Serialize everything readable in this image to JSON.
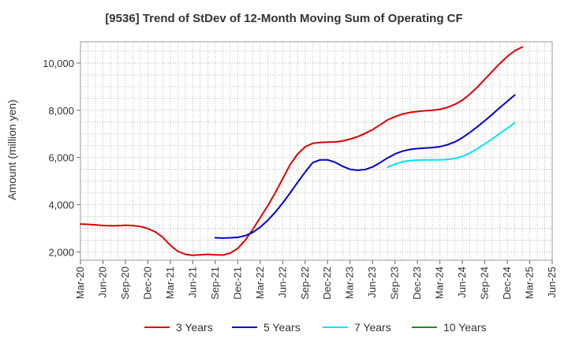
{
  "chart_data": {
    "type": "line",
    "title": "[9536]  Trend of StDev of 12-Month Moving Sum of Operating CF",
    "xlabel": "",
    "ylabel": "Amount (million yen)",
    "ylim": [
      1650,
      10900
    ],
    "yticks": [
      2000,
      4000,
      6000,
      8000,
      10000
    ],
    "ytick_labels": [
      "2,000",
      "4,000",
      "6,000",
      "8,000",
      "10,000"
    ],
    "grid": true,
    "legend_position": "bottom",
    "x_labels": [
      "Mar-20",
      "Jun-20",
      "Sep-20",
      "Dec-20",
      "Mar-21",
      "Jun-21",
      "Sep-21",
      "Dec-21",
      "Mar-22",
      "Jun-22",
      "Sep-22",
      "Dec-22",
      "Mar-23",
      "Jun-23",
      "Sep-23",
      "Dec-23",
      "Mar-24",
      "Jun-24",
      "Sep-24",
      "Dec-24",
      "Mar-25",
      "Jun-25"
    ],
    "series": [
      {
        "name": "3 Years",
        "color": "#dd0000",
        "start_index": 0,
        "values": [
          3180,
          3170,
          3150,
          3120,
          3110,
          3110,
          3130,
          3120,
          3080,
          2990,
          2850,
          2620,
          2280,
          2030,
          1900,
          1860,
          1880,
          1900,
          1880,
          1870,
          1950,
          2150,
          2500,
          2950,
          3450,
          3950,
          4500,
          5100,
          5700,
          6150,
          6450,
          6600,
          6640,
          6650,
          6660,
          6700,
          6780,
          6880,
          7020,
          7180,
          7380,
          7590,
          7730,
          7840,
          7910,
          7950,
          7980,
          8000,
          8040,
          8120,
          8250,
          8430,
          8680,
          8980,
          9310,
          9650,
          9980,
          10280,
          10520,
          10680
        ]
      },
      {
        "name": "5 Years",
        "color": "#0000cc",
        "start_index": 18,
        "values": [
          2600,
          2590,
          2600,
          2620,
          2690,
          2830,
          3050,
          3340,
          3680,
          4070,
          4500,
          4950,
          5380,
          5780,
          5900,
          5900,
          5800,
          5630,
          5500,
          5460,
          5490,
          5600,
          5780,
          5980,
          6150,
          6270,
          6340,
          6380,
          6400,
          6420,
          6460,
          6540,
          6660,
          6840,
          7060,
          7300,
          7560,
          7830,
          8110,
          8380,
          8650
        ]
      },
      {
        "name": "7 Years",
        "color": "#00e5ee",
        "start_index": 41,
        "values": [
          5590,
          5720,
          5820,
          5870,
          5890,
          5900,
          5900,
          5900,
          5920,
          5960,
          6050,
          6190,
          6370,
          6580,
          6790,
          7020,
          7240,
          7470
        ]
      },
      {
        "name": "10 Years",
        "color": "#228b22",
        "start_index": 0,
        "values": []
      }
    ]
  }
}
